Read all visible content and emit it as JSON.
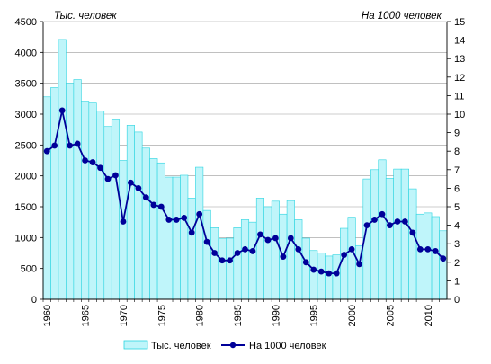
{
  "chart_data": {
    "type": "bar+line",
    "left_axis_title": "Тыс. человек",
    "right_axis_title": "На 1000 человек",
    "y_left": {
      "min": 0,
      "max": 4500,
      "step": 500,
      "ticks": [
        "0",
        "500",
        "1000",
        "1500",
        "2000",
        "2500",
        "3000",
        "3500",
        "4000",
        "4500"
      ]
    },
    "y_right": {
      "min": 0,
      "max": 15,
      "step": 1,
      "ticks": [
        "0",
        "1",
        "2",
        "3",
        "4",
        "5",
        "6",
        "7",
        "8",
        "9",
        "10",
        "11",
        "12",
        "13",
        "14",
        "15"
      ]
    },
    "x_tick_labels": [
      "1960",
      "1965",
      "1970",
      "1975",
      "1980",
      "1985",
      "1990",
      "1995",
      "2000",
      "2005",
      "2010"
    ],
    "x": [
      1960,
      1961,
      1962,
      1963,
      1964,
      1965,
      1966,
      1967,
      1968,
      1969,
      1970,
      1971,
      1972,
      1973,
      1974,
      1975,
      1976,
      1977,
      1978,
      1979,
      1980,
      1981,
      1982,
      1983,
      1984,
      1985,
      1986,
      1987,
      1988,
      1989,
      1990,
      1991,
      1992,
      1993,
      1994,
      1995,
      1996,
      1997,
      1998,
      1999,
      2000,
      2001,
      2002,
      2003,
      2004,
      2005,
      2006,
      2007,
      2008,
      2009,
      2010,
      2011,
      2012
    ],
    "series": [
      {
        "name": "Тыс. человек",
        "kind": "bar",
        "color": "#bff5fa",
        "values": [
          3280,
          3430,
          4210,
          3500,
          3560,
          3210,
          3180,
          3050,
          2800,
          2920,
          2250,
          2820,
          2710,
          2450,
          2280,
          2210,
          1980,
          1980,
          2010,
          1640,
          2140,
          1440,
          1160,
          980,
          990,
          1160,
          1290,
          1250,
          1640,
          1500,
          1590,
          1380,
          1600,
          1290,
          990,
          790,
          750,
          700,
          720,
          1150,
          1330,
          870,
          1950,
          2100,
          2260,
          1960,
          2110,
          2110,
          1790,
          1380,
          1400,
          1340,
          1110
        ]
      },
      {
        "name": "На 1000 человек",
        "kind": "line",
        "color": "#000099",
        "values": [
          8.0,
          8.3,
          10.2,
          8.3,
          8.4,
          7.5,
          7.4,
          7.1,
          6.5,
          6.7,
          4.2,
          6.3,
          6.0,
          5.5,
          5.1,
          5.0,
          4.3,
          4.3,
          4.4,
          3.6,
          4.6,
          3.1,
          2.5,
          2.1,
          2.1,
          2.5,
          2.7,
          2.6,
          3.5,
          3.2,
          3.3,
          2.3,
          3.3,
          2.7,
          2.0,
          1.6,
          1.5,
          1.4,
          1.4,
          2.4,
          2.7,
          1.9,
          4.0,
          4.3,
          4.6,
          4.0,
          4.2,
          4.2,
          3.6,
          2.7,
          2.7,
          2.6,
          2.2
        ]
      }
    ],
    "legend_position": "bottom-center"
  }
}
